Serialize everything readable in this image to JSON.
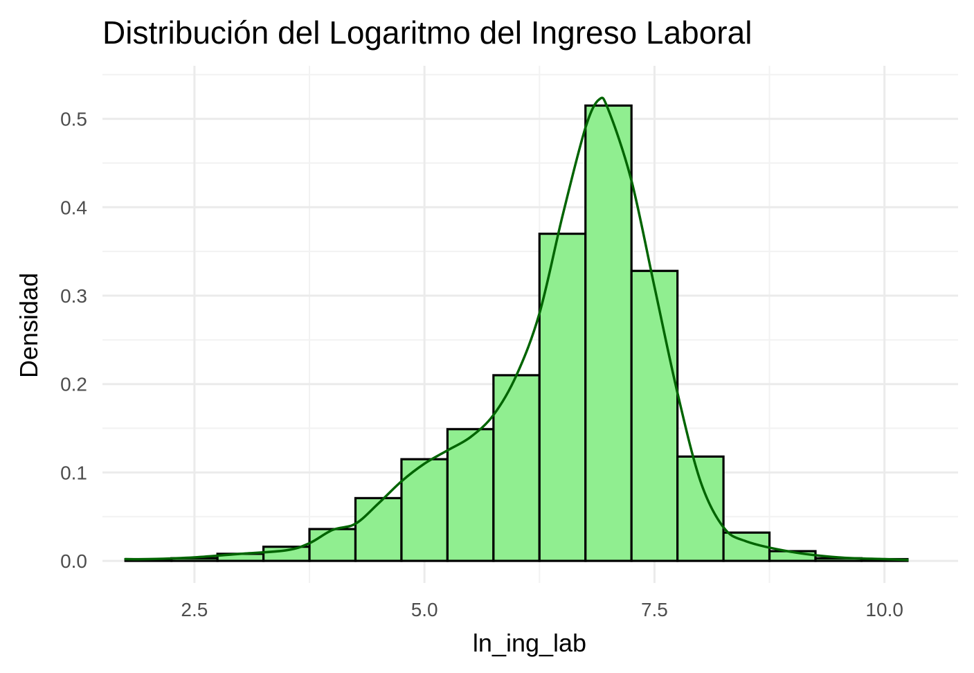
{
  "chart_data": {
    "type": "bar",
    "subtype": "histogram-with-density",
    "title": "Distribución del Logaritmo del Ingreso Laboral",
    "xlabel": "ln_ing_lab",
    "ylabel": "Densidad",
    "xlim": [
      1.5,
      10.8
    ],
    "ylim": [
      -0.025,
      0.56
    ],
    "x_ticks": [
      2.5,
      5.0,
      7.5,
      10.0
    ],
    "x_tick_labels": [
      "2.5",
      "5.0",
      "7.5",
      "10.0"
    ],
    "y_ticks": [
      0.0,
      0.1,
      0.2,
      0.3,
      0.4,
      0.5
    ],
    "y_tick_labels": [
      "0.0",
      "0.1",
      "0.2",
      "0.3",
      "0.4",
      "0.5"
    ],
    "grid": true,
    "bin_width": 0.5,
    "bins": [
      {
        "start": 1.75,
        "end": 2.25,
        "density": 0.002
      },
      {
        "start": 2.25,
        "end": 2.75,
        "density": 0.003
      },
      {
        "start": 2.75,
        "end": 3.25,
        "density": 0.008
      },
      {
        "start": 3.25,
        "end": 3.75,
        "density": 0.016
      },
      {
        "start": 3.75,
        "end": 4.25,
        "density": 0.036
      },
      {
        "start": 4.25,
        "end": 4.75,
        "density": 0.071
      },
      {
        "start": 4.75,
        "end": 5.25,
        "density": 0.115
      },
      {
        "start": 5.25,
        "end": 5.75,
        "density": 0.149
      },
      {
        "start": 5.75,
        "end": 6.25,
        "density": 0.21
      },
      {
        "start": 6.25,
        "end": 6.75,
        "density": 0.37
      },
      {
        "start": 6.75,
        "end": 7.25,
        "density": 0.515
      },
      {
        "start": 7.25,
        "end": 7.75,
        "density": 0.328
      },
      {
        "start": 7.75,
        "end": 8.25,
        "density": 0.118
      },
      {
        "start": 8.25,
        "end": 8.75,
        "density": 0.032
      },
      {
        "start": 8.75,
        "end": 9.25,
        "density": 0.011
      },
      {
        "start": 9.25,
        "end": 9.75,
        "density": 0.003
      },
      {
        "start": 9.75,
        "end": 10.25,
        "density": 0.002
      }
    ],
    "density_curve": {
      "x": [
        1.75,
        2.0,
        2.5,
        3.0,
        3.5,
        3.75,
        4.0,
        4.25,
        4.5,
        4.75,
        5.0,
        5.25,
        5.5,
        5.75,
        6.0,
        6.25,
        6.5,
        6.75,
        6.9,
        7.0,
        7.25,
        7.5,
        7.75,
        8.0,
        8.25,
        8.5,
        9.0,
        9.5,
        10.0,
        10.25
      ],
      "y": [
        0.002,
        0.002,
        0.004,
        0.008,
        0.012,
        0.02,
        0.035,
        0.042,
        0.065,
        0.09,
        0.11,
        0.125,
        0.14,
        0.165,
        0.21,
        0.28,
        0.39,
        0.49,
        0.522,
        0.51,
        0.43,
        0.31,
        0.19,
        0.09,
        0.038,
        0.022,
        0.01,
        0.004,
        0.002,
        0.001
      ]
    },
    "colors": {
      "bar_fill": "#90EE90",
      "bar_outline": "#000000",
      "density_line": "#006400",
      "grid_major": "#ebebeb",
      "grid_minor": "#f2f2f2",
      "tick_text": "#4d4d4d"
    }
  }
}
